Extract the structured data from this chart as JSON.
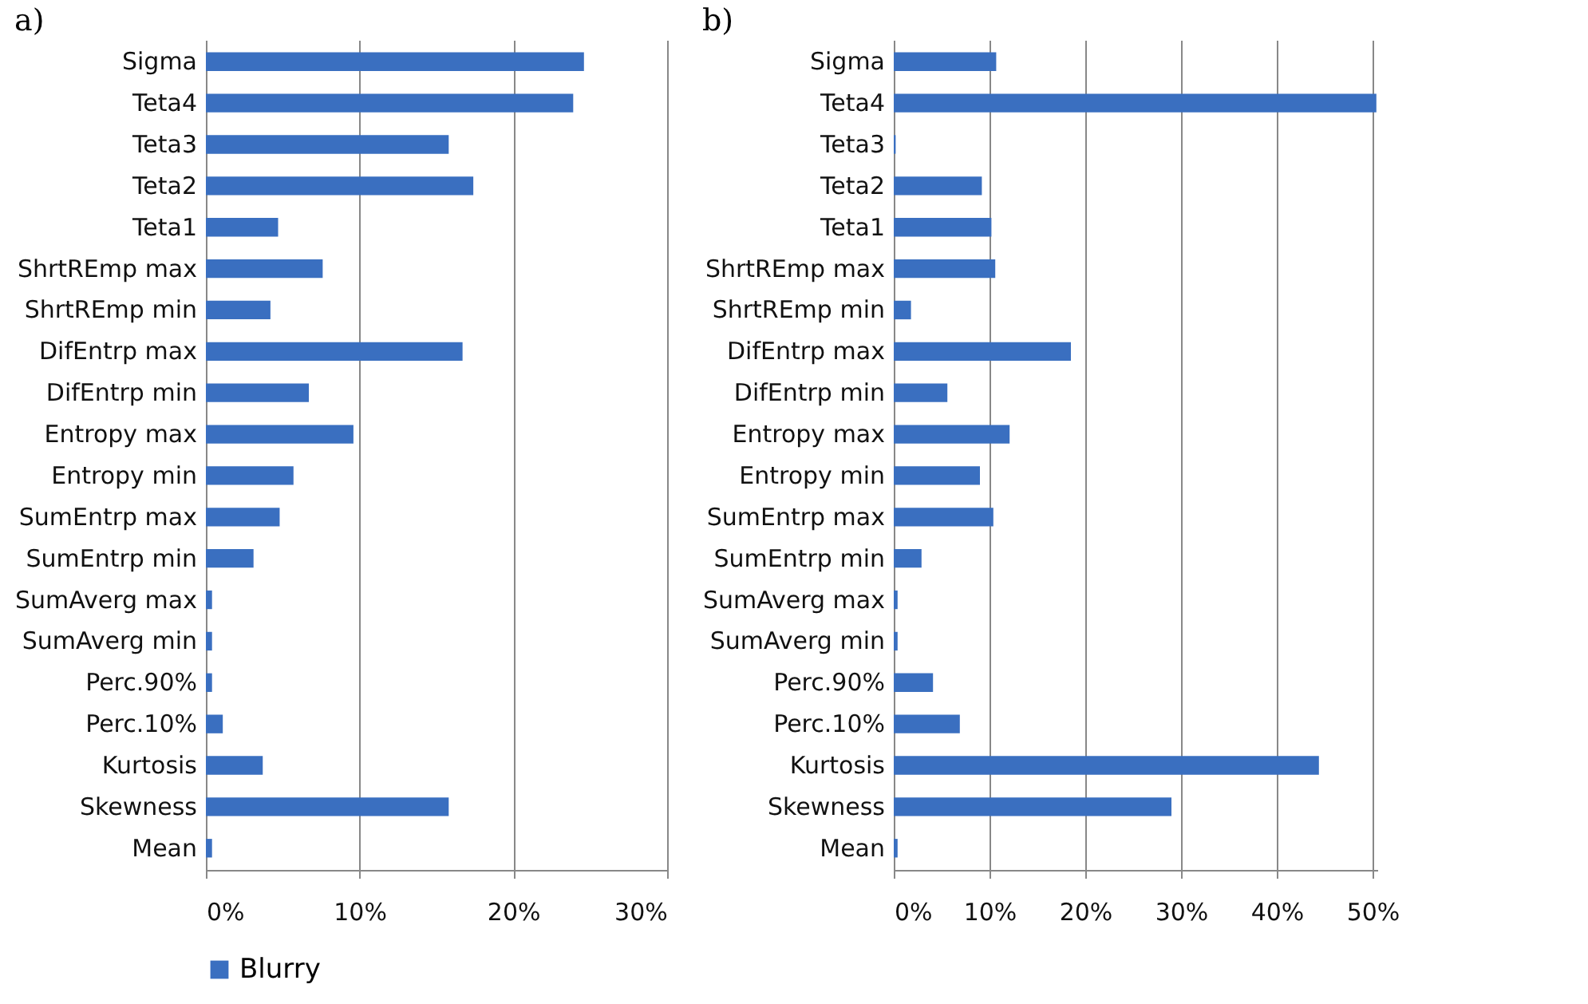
{
  "chart_data": [
    {
      "type": "bar",
      "title": "a)",
      "orientation": "horizontal",
      "categories": [
        "Sigma",
        "Teta4",
        "Teta3",
        "Teta2",
        "Teta1",
        "ShrtREmp max",
        "ShrtREmp min",
        "DifEntrp max",
        "DifEntrp min",
        "Entropy max",
        "Entropy min",
        "SumEntrp max",
        "SumEntrp min",
        "SumAverg max",
        "SumAverg min",
        "Perc.90%",
        "Perc.10%",
        "Kurtosis",
        "Skewness",
        "Mean"
      ],
      "series": [
        {
          "name": "Blurry",
          "color": "#3a6fc0",
          "values": [
            24.6,
            23.9,
            15.8,
            17.4,
            4.7,
            7.6,
            4.2,
            16.7,
            6.7,
            9.6,
            5.7,
            4.8,
            3.1,
            0.4,
            0.4,
            0.4,
            1.1,
            3.7,
            15.8,
            0.4
          ]
        }
      ],
      "xlim": [
        0,
        30
      ],
      "xticks": [
        {
          "value": 0,
          "label": "0%"
        },
        {
          "value": 10,
          "label": "10%"
        },
        {
          "value": 20,
          "label": "20%"
        },
        {
          "value": 30,
          "label": "30%"
        }
      ],
      "grid": "x",
      "legend": "bottom"
    },
    {
      "type": "bar",
      "title": "b)",
      "orientation": "horizontal",
      "categories": [
        "Sigma",
        "Teta4",
        "Teta3",
        "Teta2",
        "Teta1",
        "ShrtREmp max",
        "ShrtREmp min",
        "DifEntrp max",
        "DifEntrp min",
        "Entropy max",
        "Entropy min",
        "SumEntrp max",
        "SumEntrp min",
        "SumAverg max",
        "SumAverg min",
        "Perc.90%",
        "Perc.10%",
        "Kurtosis",
        "Skewness",
        "Mean"
      ],
      "series": [
        {
          "name": "Blurry",
          "color": "#3a6fc0",
          "values": [
            10.7,
            50.4,
            0.2,
            9.2,
            10.2,
            10.6,
            1.8,
            18.5,
            5.6,
            12.1,
            9.0,
            10.4,
            2.9,
            0.4,
            0.4,
            4.1,
            6.9,
            44.4,
            29.0,
            0.4
          ]
        }
      ],
      "xlim": [
        0,
        50.5
      ],
      "xticks": [
        {
          "value": 0,
          "label": "0%"
        },
        {
          "value": 10,
          "label": "10%"
        },
        {
          "value": 20,
          "label": "20%"
        },
        {
          "value": 30,
          "label": "30%"
        },
        {
          "value": 40,
          "label": "40%"
        },
        {
          "value": 50,
          "label": "50%"
        }
      ],
      "grid": "x",
      "legend": "bottom"
    }
  ]
}
